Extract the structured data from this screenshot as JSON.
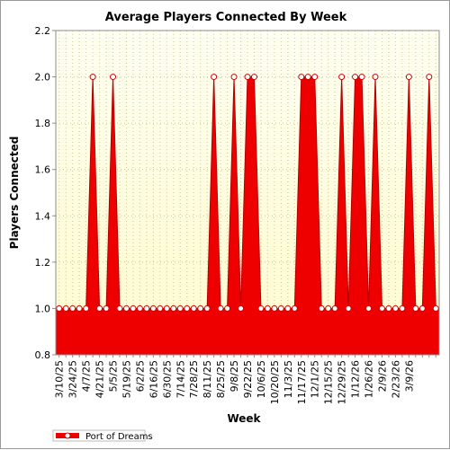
{
  "chart_data": {
    "type": "area",
    "title": "Average Players Connected By Week",
    "xlabel": "Week",
    "ylabel": "Players Connected",
    "ylim": [
      0.8,
      2.2
    ],
    "yticks": [
      "0.8",
      "1.0",
      "1.2",
      "1.4",
      "1.6",
      "1.8",
      "2.0",
      "2.2"
    ],
    "grid": true,
    "legend_position": "bottom-left",
    "colors": {
      "series": "#ee0000",
      "plot_bg_top": "#fffff0",
      "plot_bg_bottom": "#fffacd",
      "grid": "#c8c8a0"
    },
    "x_tick_labels": [
      "3/10/25",
      "3/24/25",
      "4/7/25",
      "4/21/25",
      "5/5/25",
      "5/19/25",
      "6/2/25",
      "6/16/25",
      "6/30/25",
      "7/14/25",
      "7/28/25",
      "8/11/25",
      "8/25/25",
      "9/8/25",
      "9/22/25",
      "10/6/25",
      "10/20/25",
      "11/3/25",
      "11/17/25",
      "12/1/25",
      "12/15/25",
      "12/29/25",
      "1/12/26",
      "1/26/26",
      "2/9/26",
      "2/23/26",
      "3/9/26"
    ],
    "series": [
      {
        "name": "Port of Dreams",
        "values": [
          1,
          1,
          1,
          1,
          1,
          2,
          1,
          1,
          2,
          1,
          1,
          1,
          1,
          1,
          1,
          1,
          1,
          1,
          1,
          1,
          1,
          1,
          1,
          2,
          1,
          1,
          2,
          1,
          2,
          2,
          1,
          1,
          1,
          1,
          1,
          1,
          2,
          2,
          2,
          1,
          1,
          1,
          2,
          1,
          2,
          2,
          1,
          2,
          1,
          1,
          1,
          1,
          2,
          1,
          1,
          2,
          1
        ]
      }
    ]
  }
}
